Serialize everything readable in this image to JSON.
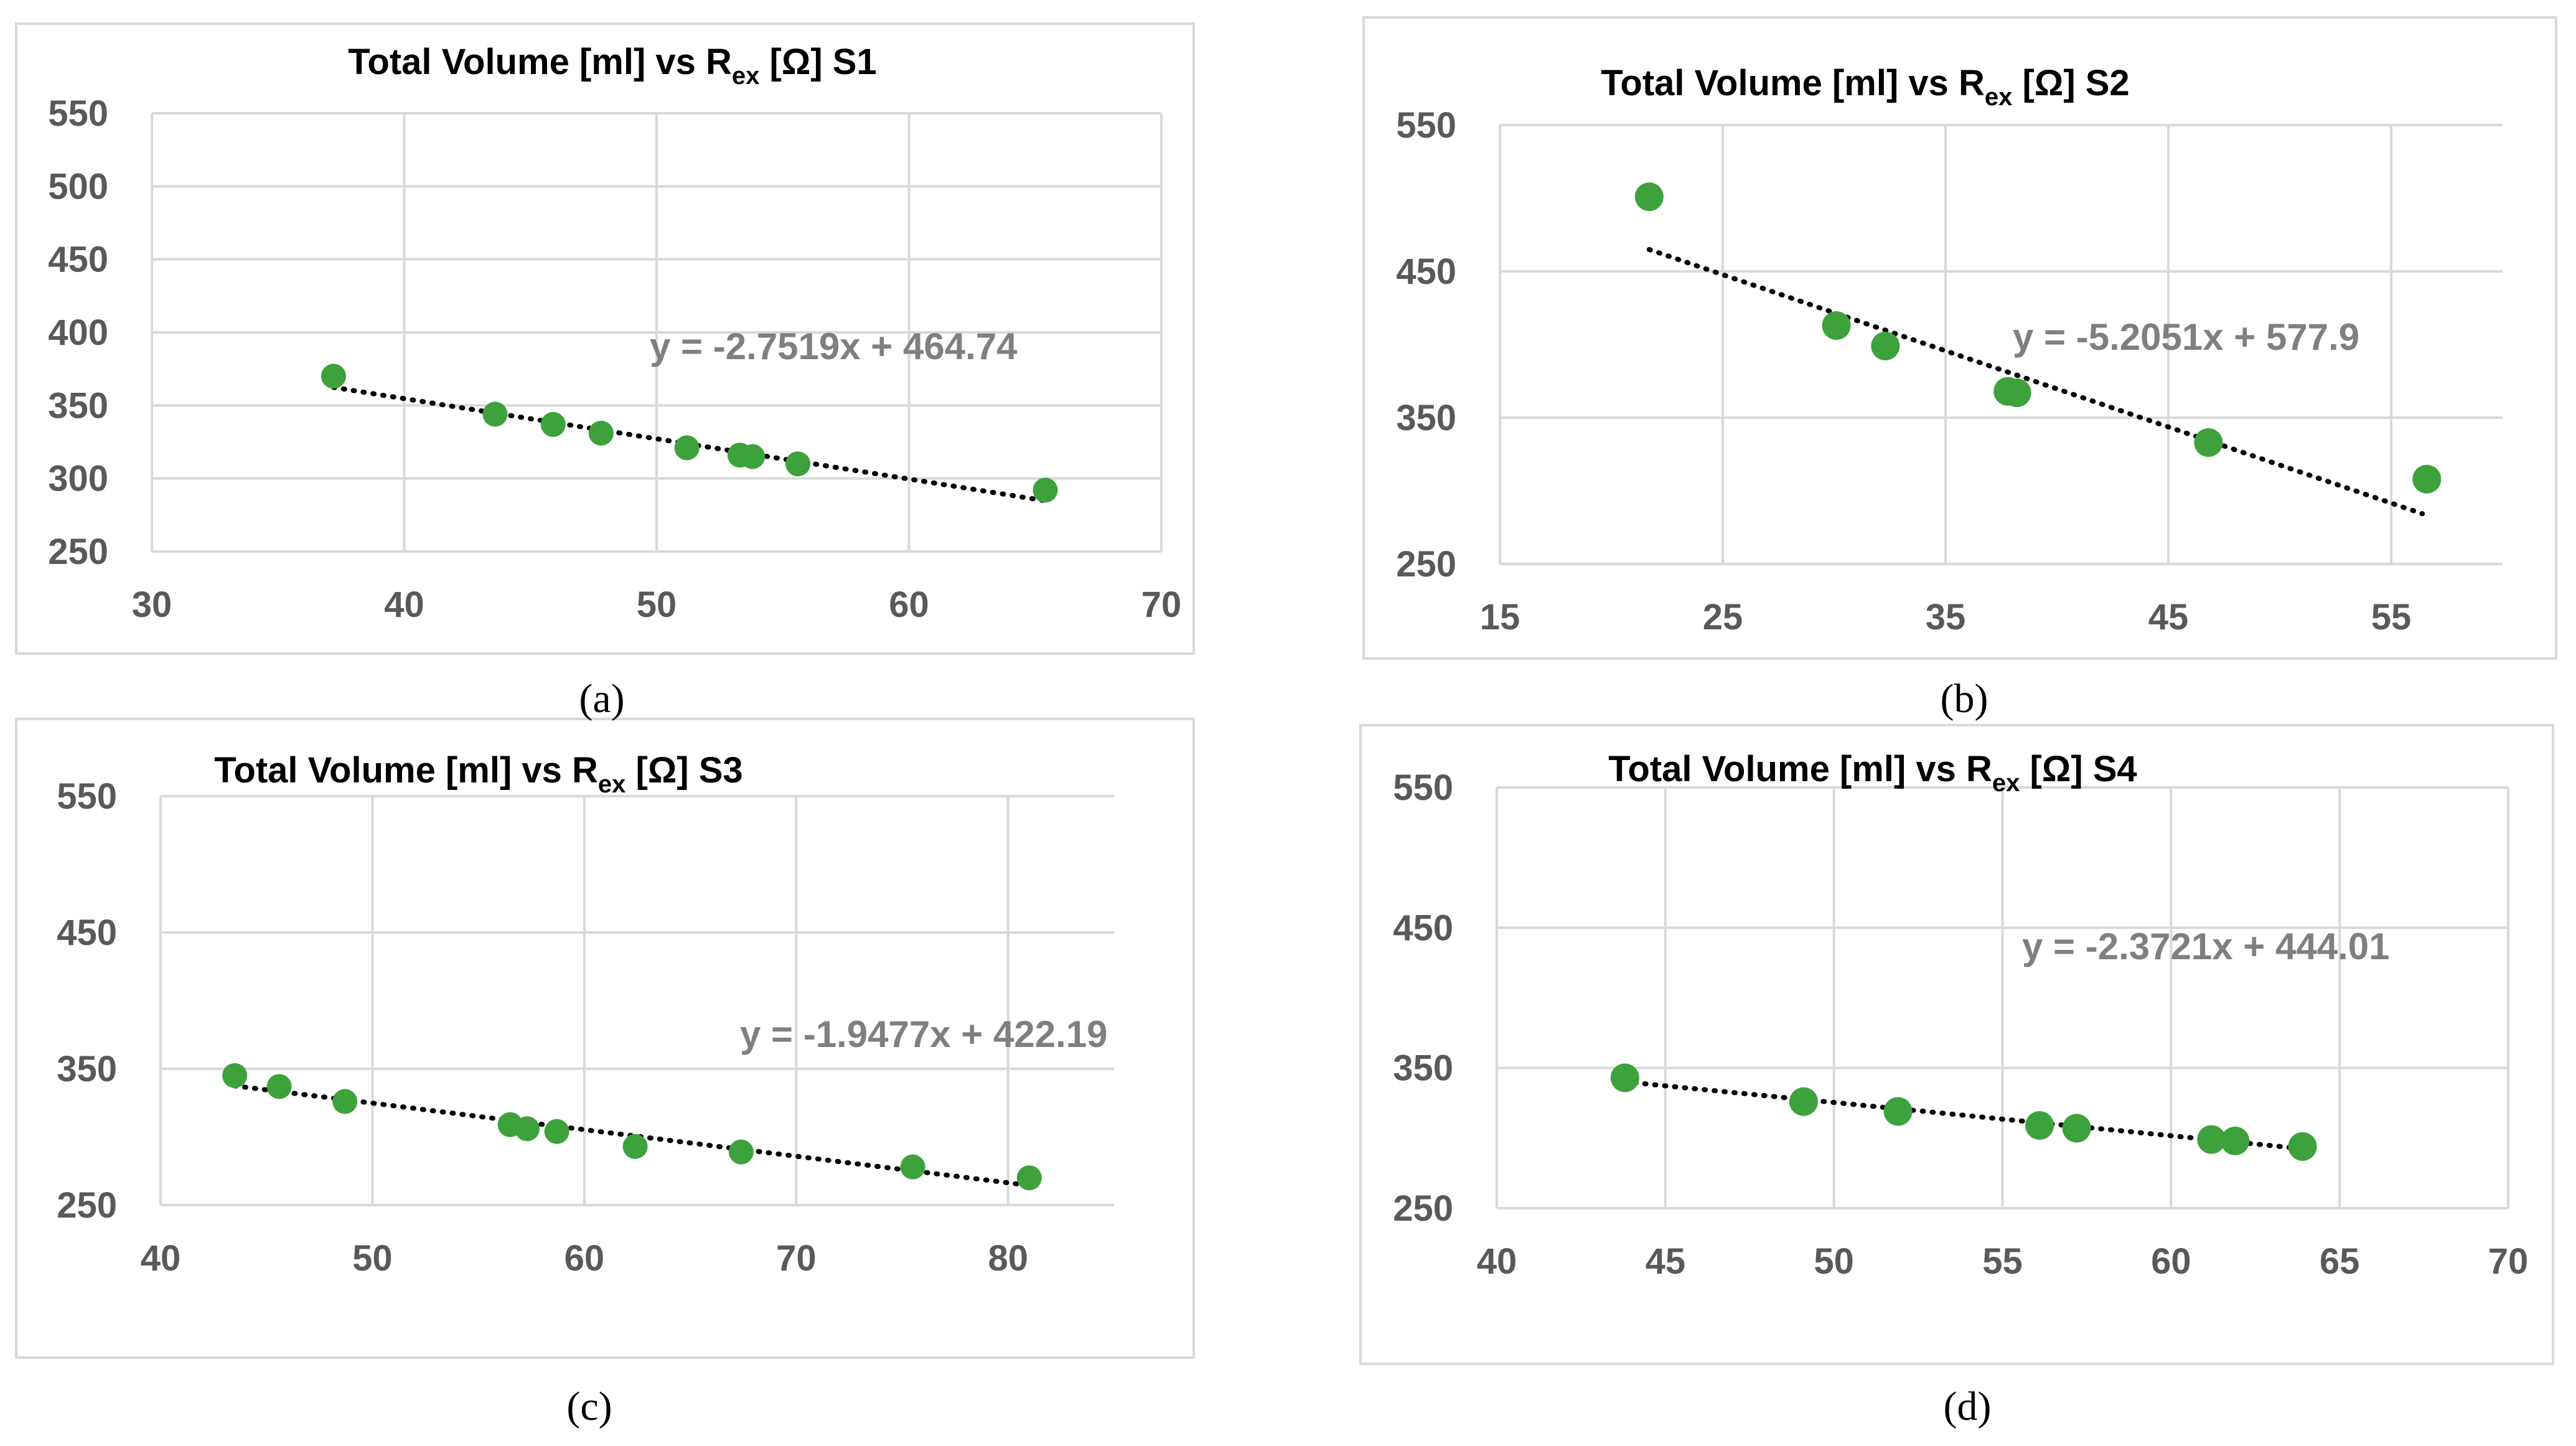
{
  "chart_data": [
    {
      "type": "scatter",
      "panel_label": "(a)",
      "title": {
        "prefix": "Total Volume [ml] vs R",
        "sub": "ex",
        "suffix": " [Ω] S1"
      },
      "xlim": [
        30,
        70
      ],
      "xticks": [
        30,
        40,
        50,
        60,
        70
      ],
      "ylim": [
        250,
        550
      ],
      "yticks": [
        250,
        300,
        350,
        400,
        450,
        500,
        550
      ],
      "grid": true,
      "points": [
        [
          37.2,
          370
        ],
        [
          43.6,
          344
        ],
        [
          45.9,
          337
        ],
        [
          47.8,
          331
        ],
        [
          51.2,
          321
        ],
        [
          53.3,
          316
        ],
        [
          53.8,
          315
        ],
        [
          55.6,
          310
        ],
        [
          65.4,
          292
        ]
      ],
      "trendline": {
        "slope": -2.7519,
        "intercept": 464.74,
        "x_range": [
          37.2,
          65.4
        ]
      },
      "equation": "y = -2.7519x + 464.74"
    },
    {
      "type": "scatter",
      "panel_label": "(b)",
      "title": {
        "prefix": "Total Volume [ml] vs R",
        "sub": "ex",
        "suffix": " [Ω] S2"
      },
      "xlim": [
        15,
        60
      ],
      "xticks": [
        15,
        25,
        35,
        45,
        55
      ],
      "ylim": [
        250,
        550
      ],
      "yticks": [
        250,
        350,
        450,
        550
      ],
      "grid": true,
      "points": [
        [
          21.7,
          501
        ],
        [
          30.1,
          413
        ],
        [
          32.3,
          399
        ],
        [
          37.8,
          368
        ],
        [
          38.2,
          367
        ],
        [
          46.8,
          333
        ],
        [
          56.6,
          308
        ]
      ],
      "trendline": {
        "slope": -5.2051,
        "intercept": 577.9,
        "x_range": [
          21.7,
          56.4
        ]
      },
      "equation": "y = -5.2051x + 577.9"
    },
    {
      "type": "scatter",
      "panel_label": "(c)",
      "title": {
        "prefix": "Total Volume [ml] vs R",
        "sub": "ex",
        "suffix": " [Ω] S3"
      },
      "xlim": [
        40,
        85
      ],
      "xticks": [
        40,
        50,
        60,
        70,
        80
      ],
      "ylim": [
        250,
        550
      ],
      "yticks": [
        250,
        350,
        450,
        550
      ],
      "grid": true,
      "points": [
        [
          43.5,
          345
        ],
        [
          45.6,
          337
        ],
        [
          48.7,
          326
        ],
        [
          56.5,
          309
        ],
        [
          57.3,
          306
        ],
        [
          58.7,
          304
        ],
        [
          62.4,
          293
        ],
        [
          67.4,
          289
        ],
        [
          75.5,
          278
        ],
        [
          81.0,
          270
        ]
      ],
      "trendline": {
        "slope": -1.9477,
        "intercept": 422.19,
        "x_range": [
          43.5,
          80.8
        ]
      },
      "equation": "y = -1.9477x + 422.19"
    },
    {
      "type": "scatter",
      "panel_label": "(d)",
      "title": {
        "prefix": "Total Volume [ml] vs R",
        "sub": "ex",
        "suffix": " [Ω] S4"
      },
      "xlim": [
        40,
        70
      ],
      "xticks": [
        40,
        45,
        50,
        55,
        60,
        65,
        70
      ],
      "ylim": [
        250,
        550
      ],
      "yticks": [
        250,
        350,
        450,
        550
      ],
      "grid": true,
      "points": [
        [
          43.8,
          343
        ],
        [
          49.1,
          326
        ],
        [
          51.9,
          319
        ],
        [
          56.1,
          309
        ],
        [
          57.2,
          307
        ],
        [
          61.2,
          299
        ],
        [
          61.9,
          298
        ],
        [
          63.9,
          294
        ]
      ],
      "trendline": {
        "slope": -2.3721,
        "intercept": 444.01,
        "x_range": [
          43.8,
          63.9
        ]
      },
      "equation": "y = -2.3721x + 444.01"
    }
  ]
}
